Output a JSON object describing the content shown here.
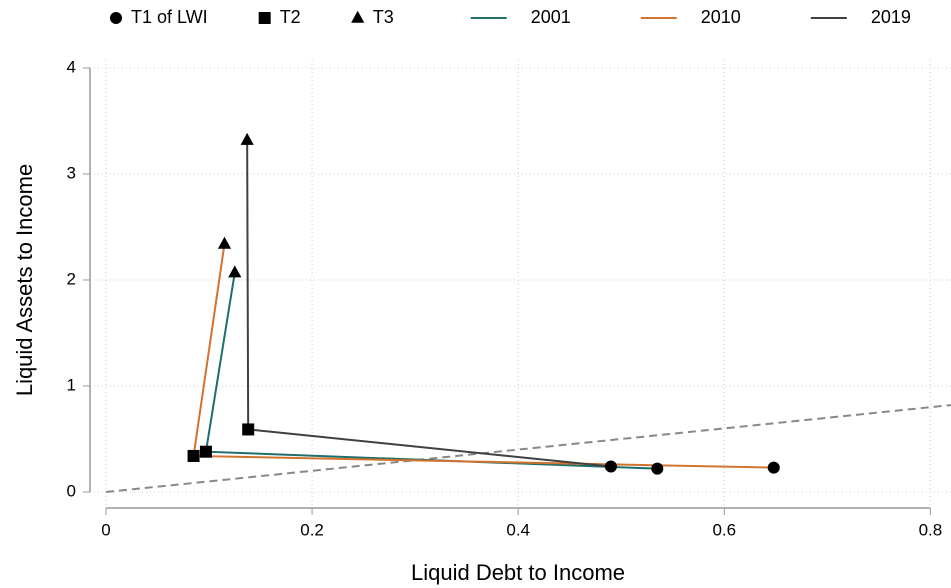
{
  "chart_data": {
    "type": "line",
    "xlabel": "Liquid Debt to Income",
    "ylabel": "Liquid Assets to Income",
    "markers": [
      {
        "name": "T1 of LWI",
        "shape": "circle"
      },
      {
        "name": "T2",
        "shape": "square"
      },
      {
        "name": "T3",
        "shape": "triangle"
      }
    ],
    "series": [
      {
        "name": "2001",
        "color": "#1f6e6b",
        "x": [
          0.535,
          0.097,
          0.125
        ],
        "values": [
          0.22,
          0.38,
          2.07
        ]
      },
      {
        "name": "2010",
        "color": "#d2732f",
        "x": [
          0.648,
          0.085,
          0.115
        ],
        "values": [
          0.23,
          0.34,
          2.34
        ]
      },
      {
        "name": "2019",
        "color": "#404040",
        "x": [
          0.49,
          0.138,
          0.137
        ],
        "values": [
          0.24,
          0.59,
          3.32
        ]
      }
    ],
    "xlim": [
      -0.0155,
      0.82
    ],
    "ylim": [
      -0.151,
      4.075
    ],
    "xticks": [
      0,
      0.2,
      0.4,
      0.6,
      0.8
    ],
    "yticks": [
      0,
      1,
      2,
      3,
      4
    ],
    "grid": true,
    "diagonal": true
  }
}
